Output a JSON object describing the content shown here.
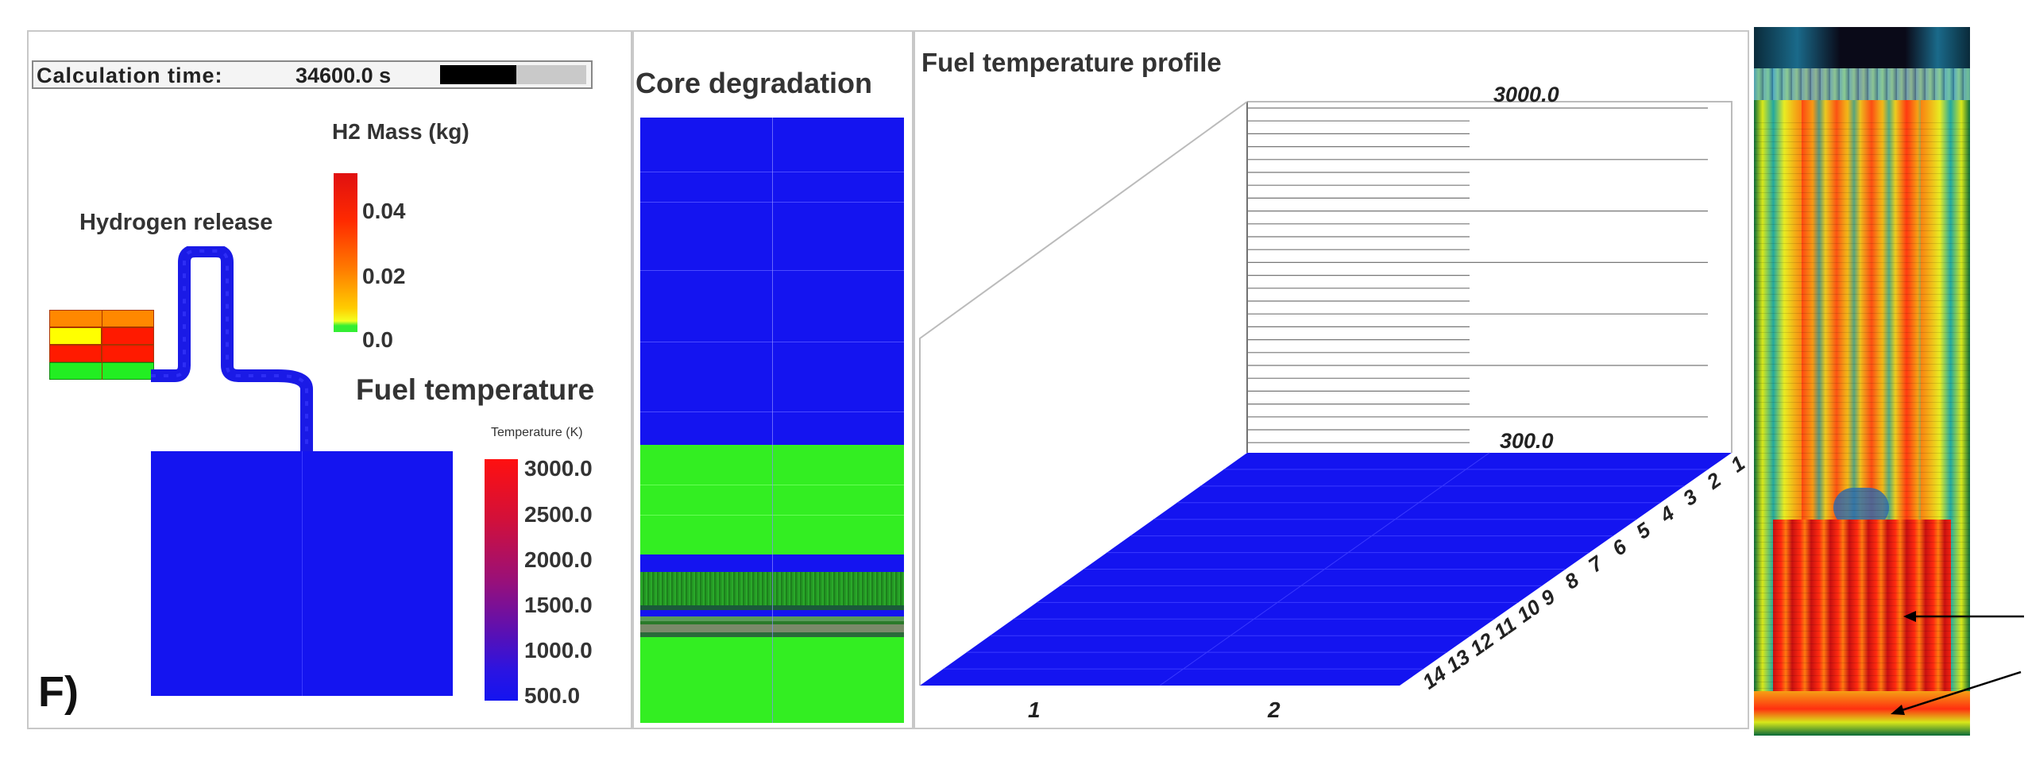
{
  "figure_label": "F)",
  "calculation": {
    "label": "Calculation  time:",
    "value": "34600.0 s",
    "progress": 0.52
  },
  "hydrogen": {
    "title": "Hydrogen release",
    "legend_title": "H2 Mass (kg)",
    "legend_ticks": [
      "0.04",
      "0.02",
      "0.0"
    ]
  },
  "fuel_temperature": {
    "title": "Fuel temperature",
    "legend_title": "Temperature (K)",
    "legend_ticks": [
      "3000.0",
      "2500.0",
      "2000.0",
      "1500.0",
      "1000.0",
      "500.0"
    ]
  },
  "core_degradation": {
    "title": "Core degradation"
  },
  "profile": {
    "title": "Fuel temperature profile",
    "z_max": "3000.0",
    "z_min": "300.0",
    "x_ticks": [
      "1",
      "2"
    ],
    "depth_ticks": [
      "14",
      "13",
      "12",
      "11",
      "10",
      "9",
      "8",
      "7",
      "6",
      "5",
      "4",
      "3",
      "2",
      "1"
    ]
  },
  "colors": {
    "core_blue": "#1414f0",
    "core_green": "#33ee22",
    "pipe_blue": "#1a1ae6",
    "hot_red": "#ff1a00",
    "warm_orange": "#ff8c00",
    "yellow": "#ffff00"
  }
}
